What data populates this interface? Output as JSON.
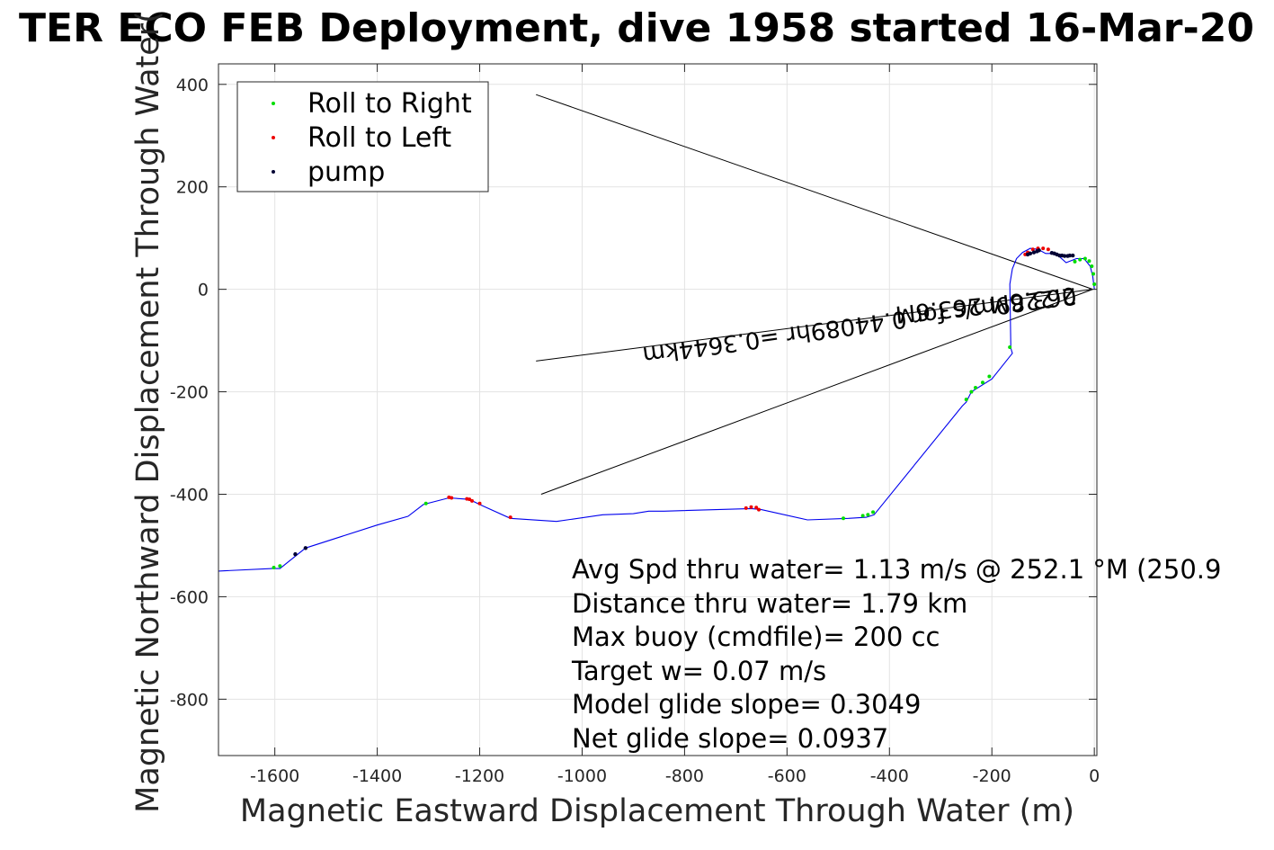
{
  "chart_data": {
    "type": "line",
    "title": "TER ECO FEB Deployment, dive 1958 started 16-Mar-20",
    "xlabel": "Magnetic Eastward Displacement Through Water (m)",
    "ylabel": "Magnetic Northward Displacement Through Water(",
    "xlim": [
      -1710,
      5
    ],
    "ylim": [
      -910,
      440
    ],
    "xticks": [
      -1600,
      -1400,
      -1200,
      -1000,
      -800,
      -600,
      -400,
      -200,
      0
    ],
    "yticks": [
      -800,
      -600,
      -400,
      -200,
      0,
      200,
      400
    ],
    "grid": true,
    "legend_position": "top-left",
    "legend": [
      {
        "name": "Roll to Right",
        "color": "#00dd00"
      },
      {
        "name": "Roll to Left",
        "color": "#ee0000"
      },
      {
        "name": "pump",
        "color": "#000033"
      }
    ],
    "track": {
      "color": "#0000ee",
      "x": [
        0,
        -3,
        -8,
        -20,
        -35,
        -55,
        -75,
        -95,
        -110,
        -125,
        -140,
        -152,
        -160,
        -165,
        -163,
        -160,
        -200,
        -240,
        -250,
        -258,
        -430,
        -445,
        -480,
        -560,
        -650,
        -670,
        -840,
        -870,
        -900,
        -960,
        -1050,
        -1140,
        -1200,
        -1220,
        -1260,
        -1310,
        -1340,
        -1400,
        -1540,
        -1590,
        -1605,
        -1710
      ],
      "y": [
        0,
        25,
        45,
        60,
        60,
        52,
        70,
        70,
        78,
        80,
        72,
        60,
        40,
        10,
        -115,
        -125,
        -175,
        -200,
        -220,
        -228,
        -440,
        -445,
        -447,
        -450,
        -430,
        -428,
        -433,
        -433,
        -438,
        -440,
        -453,
        -447,
        -420,
        -410,
        -407,
        -420,
        -443,
        -460,
        -505,
        -545,
        -545,
        -550
      ]
    },
    "roll_right_points": {
      "x": [
        0,
        -2,
        -5,
        -10,
        -18,
        -28,
        -38,
        -165,
        -205,
        -218,
        -232,
        -240,
        -250,
        -432,
        -442,
        -452,
        -490,
        -1305,
        -1590,
        -1602
      ],
      "y": [
        10,
        30,
        45,
        55,
        60,
        58,
        54,
        -113,
        -170,
        -182,
        -192,
        -200,
        -215,
        -435,
        -440,
        -442,
        -447,
        -418,
        -540,
        -543
      ]
    },
    "roll_left_points": {
      "x": [
        -90,
        -100,
        -110,
        -120,
        -130,
        -135,
        -655,
        -660,
        -670,
        -680,
        -1140,
        -1200,
        -1215,
        -1220,
        -1225,
        -1255,
        -1260
      ],
      "y": [
        78,
        80,
        80,
        78,
        72,
        68,
        -430,
        -426,
        -425,
        -427,
        -445,
        -418,
        -413,
        -410,
        -409,
        -407,
        -406
      ],
      "color": "#ee0000"
    },
    "pump_points": {
      "x": [
        -42,
        -48,
        -52,
        -58,
        -63,
        -68,
        -73,
        -78,
        -83,
        -108,
        -112,
        -118,
        -125,
        -130,
        -1540,
        -1560
      ],
      "y": [
        66,
        66,
        65,
        65,
        66,
        66,
        68,
        70,
        71,
        76,
        74,
        72,
        70,
        68,
        -505,
        -517
      ]
    },
    "reference_lines": [
      {
        "x": [
          -3,
          -1090
        ],
        "y": [
          0,
          380
        ]
      },
      {
        "x": [
          -3,
          -1090
        ],
        "y": [
          0,
          -140
        ]
      },
      {
        "x": [
          -3,
          -1080
        ],
        "y": [
          0,
          -400
        ]
      }
    ],
    "rotated_annotations": [
      "0.2289m/s for 0.44089hr =0.3644km",
      "263.6M 263.6M"
    ],
    "annotations": [
      "Avg Spd thru water=  1.13 m/s @ 252.1 °M (250.9",
      "Distance thru water=  1.79 km",
      "Max buoy (cmdfile)= 200 cc",
      "Target w= 0.07 m/s",
      "Model glide slope= 0.3049",
      "Net glide slope= 0.0937"
    ]
  }
}
